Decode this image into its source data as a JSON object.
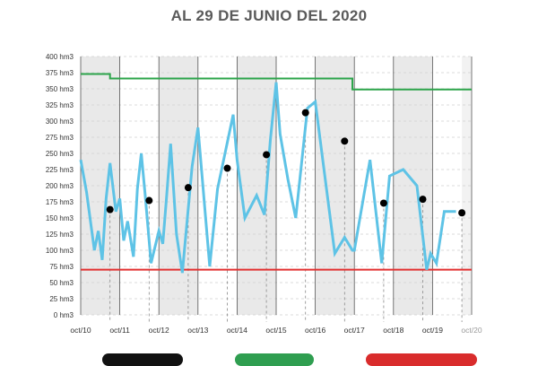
{
  "title": "AL 29 DE JUNIO DEL 2020",
  "colors": {
    "background": "#ffffff",
    "band": "#e9e9e9",
    "grid": "#d0d0d0",
    "axis_text": "#333333",
    "series_line": "#5ec3e6",
    "points": "#000000",
    "upper_line": "#2ca44a",
    "lower_line": "#e23131",
    "legend_black": "#111111",
    "legend_green": "#2f9e50",
    "legend_red": "#d92c2c"
  },
  "chart_data": {
    "type": "line",
    "title": "AL 29 DE JUNIO DEL 2020",
    "xlabel": "",
    "ylabel": "",
    "x_ticks": [
      "oct/10",
      "oct/11",
      "oct/12",
      "oct/13",
      "oct/14",
      "oct/15",
      "oct/16",
      "oct/17",
      "oct/18",
      "oct/19",
      "oct/20"
    ],
    "y_ticks": [
      "0 hm3",
      "25 hm3",
      "50 hm3",
      "75 hm3",
      "100 hm3",
      "125 hm3",
      "150 hm3",
      "175 hm3",
      "200 hm3",
      "225 hm3",
      "250 hm3",
      "275 hm3",
      "300 hm3",
      "325 hm3",
      "350 hm3",
      "375 hm3",
      "400 hm3"
    ],
    "ylim": [
      0,
      400
    ],
    "xlim": [
      0,
      10
    ],
    "grid": true,
    "series": [
      {
        "x": [
          0.0,
          0.15,
          0.35,
          0.45,
          0.55,
          0.65,
          0.75,
          0.9,
          1.0,
          1.1,
          1.2,
          1.35,
          1.45,
          1.55,
          1.65,
          1.8,
          2.0,
          2.1,
          2.2,
          2.3,
          2.45,
          2.6,
          2.85,
          3.0,
          3.3,
          3.5,
          3.9,
          4.0,
          4.2,
          4.5,
          4.7,
          4.85,
          5.0,
          5.1,
          5.3,
          5.5,
          5.8,
          6.0,
          6.5,
          6.75,
          6.95,
          7.0,
          7.4,
          7.55,
          7.7,
          7.9,
          8.25,
          8.6,
          8.85,
          8.95,
          9.1,
          9.3,
          9.6
        ],
        "values": [
          240,
          190,
          100,
          130,
          85,
          180,
          235,
          160,
          180,
          115,
          145,
          90,
          195,
          250,
          185,
          80,
          130,
          110,
          185,
          265,
          125,
          65,
          230,
          290,
          75,
          195,
          310,
          240,
          150,
          185,
          155,
          270,
          360,
          280,
          210,
          150,
          320,
          330,
          95,
          120,
          100,
          100,
          240,
          160,
          80,
          215,
          225,
          200,
          70,
          95,
          80,
          160,
          160
        ]
      }
    ],
    "points": {
      "x": [
        0.75,
        1.75,
        2.75,
        3.75,
        4.75,
        5.75,
        6.75,
        7.75,
        8.75,
        9.75
      ],
      "values": [
        163,
        177,
        197,
        227,
        248,
        313,
        269,
        173,
        179,
        158
      ]
    },
    "reference_lines": [
      {
        "segments": [
          {
            "x": [
              0,
              0.75
            ],
            "y": 373
          },
          {
            "x": [
              0.75,
              6.95
            ],
            "y": 366
          },
          {
            "x": [
              6.95,
              10
            ],
            "y": 349
          }
        ]
      },
      {
        "segments": [
          {
            "x": [
              0,
              10
            ],
            "y": 70
          }
        ]
      }
    ]
  }
}
